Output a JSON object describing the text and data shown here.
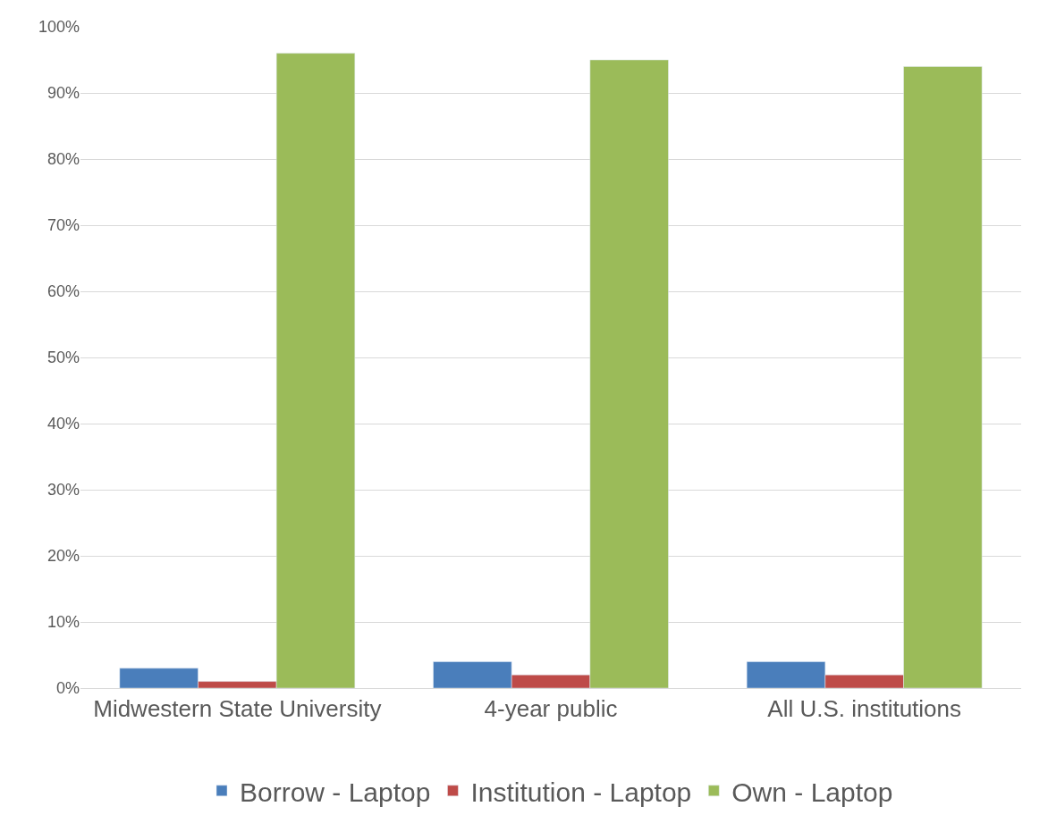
{
  "chart_data": {
    "type": "bar",
    "categories": [
      "Midwestern State University",
      "4-year public",
      "All U.S. institutions"
    ],
    "series": [
      {
        "name": "Borrow - Laptop",
        "color": "#4a7ebb",
        "values": [
          3,
          4,
          4
        ]
      },
      {
        "name": "Institution - Laptop",
        "color": "#be4b48",
        "values": [
          1,
          2,
          2
        ]
      },
      {
        "name": "Own - Laptop",
        "color": "#9bbb59",
        "values": [
          96,
          95,
          94
        ]
      }
    ],
    "ylim": [
      0,
      100
    ],
    "yticks": [
      {
        "value": 0,
        "label": "0%"
      },
      {
        "value": 10,
        "label": "10%"
      },
      {
        "value": 20,
        "label": "20%"
      },
      {
        "value": 30,
        "label": "30%"
      },
      {
        "value": 40,
        "label": "40%"
      },
      {
        "value": 50,
        "label": "50%"
      },
      {
        "value": 60,
        "label": "60%"
      },
      {
        "value": 70,
        "label": "70%"
      },
      {
        "value": 80,
        "label": "80%"
      },
      {
        "value": 90,
        "label": "90%"
      },
      {
        "value": 100,
        "label": "100%"
      }
    ],
    "grid": "y",
    "legend": "bottom"
  }
}
